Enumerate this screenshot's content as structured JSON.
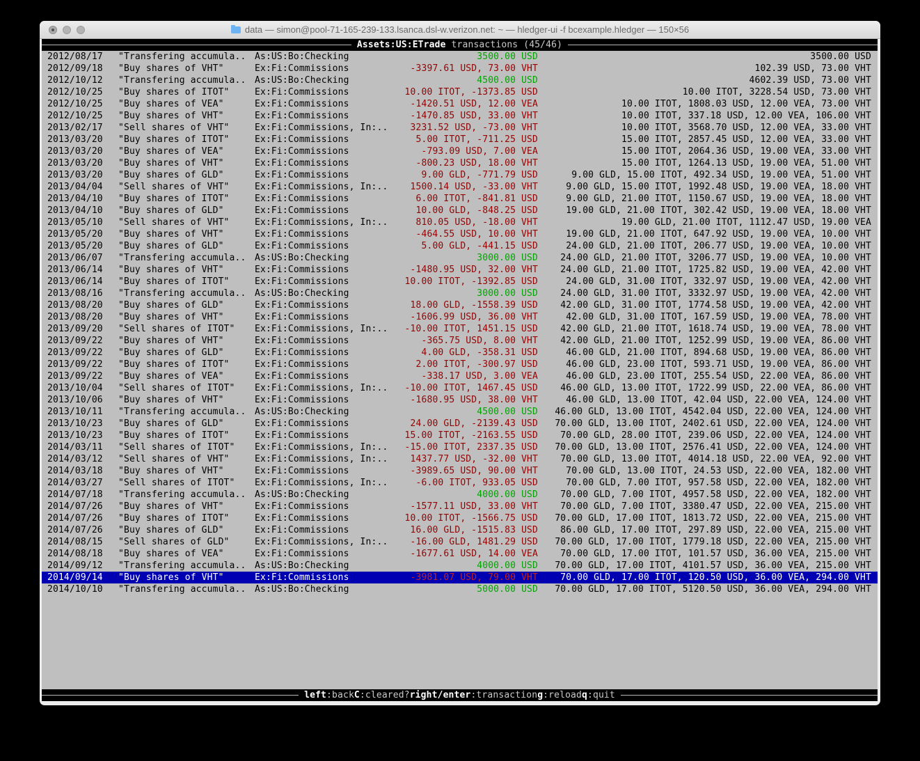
{
  "window": {
    "title": "data — simon@pool-71-165-239-133.lsanca.dsl-w.verizon.net: ~ — hledger-ui -f bcexample.hledger — 150×56"
  },
  "topbar": {
    "account": "Assets:US:ETrade",
    "mode": "transactions (45/46)"
  },
  "statusbar": {
    "keys": [
      {
        "key": "left",
        "desc": ":back"
      },
      {
        "key": "C",
        "desc": ":cleared?"
      },
      {
        "key": "right/enter",
        "desc": ":transaction"
      },
      {
        "key": "g",
        "desc": ":reload"
      },
      {
        "key": "q",
        "desc": ":quit"
      }
    ]
  },
  "colors": {
    "terminal_bg": "#bfbfbf",
    "negative_amount": "#990000",
    "positive_amount": "#00a600",
    "selection_bg": "#0000b2",
    "bar_bg": "#000000"
  },
  "transactions": [
    {
      "date": "2012/08/17",
      "description": "\"Transfering accumula..",
      "accounts": "As:US:Bo:Checking",
      "change": "3500.00 USD",
      "change_positive": true,
      "balance": "3500.00 USD",
      "selected": false
    },
    {
      "date": "2012/09/18",
      "description": "\"Buy shares of VHT\"",
      "accounts": "Ex:Fi:Commissions",
      "change": "-3397.61 USD, 73.00 VHT",
      "change_positive": false,
      "balance": "102.39 USD, 73.00 VHT",
      "selected": false
    },
    {
      "date": "2012/10/12",
      "description": "\"Transfering accumula..",
      "accounts": "As:US:Bo:Checking",
      "change": "4500.00 USD",
      "change_positive": true,
      "balance": "4602.39 USD, 73.00 VHT",
      "selected": false
    },
    {
      "date": "2012/10/25",
      "description": "\"Buy shares of ITOT\"",
      "accounts": "Ex:Fi:Commissions",
      "change": "10.00 ITOT, -1373.85 USD",
      "change_positive": false,
      "balance": "10.00 ITOT, 3228.54 USD, 73.00 VHT",
      "selected": false
    },
    {
      "date": "2012/10/25",
      "description": "\"Buy shares of VEA\"",
      "accounts": "Ex:Fi:Commissions",
      "change": "-1420.51 USD, 12.00 VEA",
      "change_positive": false,
      "balance": "10.00 ITOT, 1808.03 USD, 12.00 VEA, 73.00 VHT",
      "selected": false
    },
    {
      "date": "2012/10/25",
      "description": "\"Buy shares of VHT\"",
      "accounts": "Ex:Fi:Commissions",
      "change": "-1470.85 USD, 33.00 VHT",
      "change_positive": false,
      "balance": "10.00 ITOT, 337.18 USD, 12.00 VEA, 106.00 VHT",
      "selected": false
    },
    {
      "date": "2013/02/17",
      "description": "\"Sell shares of VHT\"",
      "accounts": "Ex:Fi:Commissions, In:..",
      "change": "3231.52 USD, -73.00 VHT",
      "change_positive": false,
      "balance": "10.00 ITOT, 3568.70 USD, 12.00 VEA, 33.00 VHT",
      "selected": false
    },
    {
      "date": "2013/03/20",
      "description": "\"Buy shares of ITOT\"",
      "accounts": "Ex:Fi:Commissions",
      "change": "5.00 ITOT, -711.25 USD",
      "change_positive": false,
      "balance": "15.00 ITOT, 2857.45 USD, 12.00 VEA, 33.00 VHT",
      "selected": false
    },
    {
      "date": "2013/03/20",
      "description": "\"Buy shares of VEA\"",
      "accounts": "Ex:Fi:Commissions",
      "change": "-793.09 USD, 7.00 VEA",
      "change_positive": false,
      "balance": "15.00 ITOT, 2064.36 USD, 19.00 VEA, 33.00 VHT",
      "selected": false
    },
    {
      "date": "2013/03/20",
      "description": "\"Buy shares of VHT\"",
      "accounts": "Ex:Fi:Commissions",
      "change": "-800.23 USD, 18.00 VHT",
      "change_positive": false,
      "balance": "15.00 ITOT, 1264.13 USD, 19.00 VEA, 51.00 VHT",
      "selected": false
    },
    {
      "date": "2013/03/20",
      "description": "\"Buy shares of GLD\"",
      "accounts": "Ex:Fi:Commissions",
      "change": "9.00 GLD, -771.79 USD",
      "change_positive": false,
      "balance": "9.00 GLD, 15.00 ITOT, 492.34 USD, 19.00 VEA, 51.00 VHT",
      "selected": false
    },
    {
      "date": "2013/04/04",
      "description": "\"Sell shares of VHT\"",
      "accounts": "Ex:Fi:Commissions, In:..",
      "change": "1500.14 USD, -33.00 VHT",
      "change_positive": false,
      "balance": "9.00 GLD, 15.00 ITOT, 1992.48 USD, 19.00 VEA, 18.00 VHT",
      "selected": false
    },
    {
      "date": "2013/04/10",
      "description": "\"Buy shares of ITOT\"",
      "accounts": "Ex:Fi:Commissions",
      "change": "6.00 ITOT, -841.81 USD",
      "change_positive": false,
      "balance": "9.00 GLD, 21.00 ITOT, 1150.67 USD, 19.00 VEA, 18.00 VHT",
      "selected": false
    },
    {
      "date": "2013/04/10",
      "description": "\"Buy shares of GLD\"",
      "accounts": "Ex:Fi:Commissions",
      "change": "10.00 GLD, -848.25 USD",
      "change_positive": false,
      "balance": "19.00 GLD, 21.00 ITOT, 302.42 USD, 19.00 VEA, 18.00 VHT",
      "selected": false
    },
    {
      "date": "2013/05/10",
      "description": "\"Sell shares of VHT\"",
      "accounts": "Ex:Fi:Commissions, In:..",
      "change": "810.05 USD, -18.00 VHT",
      "change_positive": false,
      "balance": "19.00 GLD, 21.00 ITOT, 1112.47 USD, 19.00 VEA",
      "selected": false
    },
    {
      "date": "2013/05/20",
      "description": "\"Buy shares of VHT\"",
      "accounts": "Ex:Fi:Commissions",
      "change": "-464.55 USD, 10.00 VHT",
      "change_positive": false,
      "balance": "19.00 GLD, 21.00 ITOT, 647.92 USD, 19.00 VEA, 10.00 VHT",
      "selected": false
    },
    {
      "date": "2013/05/20",
      "description": "\"Buy shares of GLD\"",
      "accounts": "Ex:Fi:Commissions",
      "change": "5.00 GLD, -441.15 USD",
      "change_positive": false,
      "balance": "24.00 GLD, 21.00 ITOT, 206.77 USD, 19.00 VEA, 10.00 VHT",
      "selected": false
    },
    {
      "date": "2013/06/07",
      "description": "\"Transfering accumula..",
      "accounts": "As:US:Bo:Checking",
      "change": "3000.00 USD",
      "change_positive": true,
      "balance": "24.00 GLD, 21.00 ITOT, 3206.77 USD, 19.00 VEA, 10.00 VHT",
      "selected": false
    },
    {
      "date": "2013/06/14",
      "description": "\"Buy shares of VHT\"",
      "accounts": "Ex:Fi:Commissions",
      "change": "-1480.95 USD, 32.00 VHT",
      "change_positive": false,
      "balance": "24.00 GLD, 21.00 ITOT, 1725.82 USD, 19.00 VEA, 42.00 VHT",
      "selected": false
    },
    {
      "date": "2013/06/14",
      "description": "\"Buy shares of ITOT\"",
      "accounts": "Ex:Fi:Commissions",
      "change": "10.00 ITOT, -1392.85 USD",
      "change_positive": false,
      "balance": "24.00 GLD, 31.00 ITOT, 332.97 USD, 19.00 VEA, 42.00 VHT",
      "selected": false
    },
    {
      "date": "2013/08/16",
      "description": "\"Transfering accumula..",
      "accounts": "As:US:Bo:Checking",
      "change": "3000.00 USD",
      "change_positive": true,
      "balance": "24.00 GLD, 31.00 ITOT, 3332.97 USD, 19.00 VEA, 42.00 VHT",
      "selected": false
    },
    {
      "date": "2013/08/20",
      "description": "\"Buy shares of GLD\"",
      "accounts": "Ex:Fi:Commissions",
      "change": "18.00 GLD, -1558.39 USD",
      "change_positive": false,
      "balance": "42.00 GLD, 31.00 ITOT, 1774.58 USD, 19.00 VEA, 42.00 VHT",
      "selected": false
    },
    {
      "date": "2013/08/20",
      "description": "\"Buy shares of VHT\"",
      "accounts": "Ex:Fi:Commissions",
      "change": "-1606.99 USD, 36.00 VHT",
      "change_positive": false,
      "balance": "42.00 GLD, 31.00 ITOT, 167.59 USD, 19.00 VEA, 78.00 VHT",
      "selected": false
    },
    {
      "date": "2013/09/20",
      "description": "\"Sell shares of ITOT\"",
      "accounts": "Ex:Fi:Commissions, In:..",
      "change": "-10.00 ITOT, 1451.15 USD",
      "change_positive": false,
      "balance": "42.00 GLD, 21.00 ITOT, 1618.74 USD, 19.00 VEA, 78.00 VHT",
      "selected": false
    },
    {
      "date": "2013/09/22",
      "description": "\"Buy shares of VHT\"",
      "accounts": "Ex:Fi:Commissions",
      "change": "-365.75 USD, 8.00 VHT",
      "change_positive": false,
      "balance": "42.00 GLD, 21.00 ITOT, 1252.99 USD, 19.00 VEA, 86.00 VHT",
      "selected": false
    },
    {
      "date": "2013/09/22",
      "description": "\"Buy shares of GLD\"",
      "accounts": "Ex:Fi:Commissions",
      "change": "4.00 GLD, -358.31 USD",
      "change_positive": false,
      "balance": "46.00 GLD, 21.00 ITOT, 894.68 USD, 19.00 VEA, 86.00 VHT",
      "selected": false
    },
    {
      "date": "2013/09/22",
      "description": "\"Buy shares of ITOT\"",
      "accounts": "Ex:Fi:Commissions",
      "change": "2.00 ITOT, -300.97 USD",
      "change_positive": false,
      "balance": "46.00 GLD, 23.00 ITOT, 593.71 USD, 19.00 VEA, 86.00 VHT",
      "selected": false
    },
    {
      "date": "2013/09/22",
      "description": "\"Buy shares of VEA\"",
      "accounts": "Ex:Fi:Commissions",
      "change": "-338.17 USD, 3.00 VEA",
      "change_positive": false,
      "balance": "46.00 GLD, 23.00 ITOT, 255.54 USD, 22.00 VEA, 86.00 VHT",
      "selected": false
    },
    {
      "date": "2013/10/04",
      "description": "\"Sell shares of ITOT\"",
      "accounts": "Ex:Fi:Commissions, In:..",
      "change": "-10.00 ITOT, 1467.45 USD",
      "change_positive": false,
      "balance": "46.00 GLD, 13.00 ITOT, 1722.99 USD, 22.00 VEA, 86.00 VHT",
      "selected": false
    },
    {
      "date": "2013/10/06",
      "description": "\"Buy shares of VHT\"",
      "accounts": "Ex:Fi:Commissions",
      "change": "-1680.95 USD, 38.00 VHT",
      "change_positive": false,
      "balance": "46.00 GLD, 13.00 ITOT, 42.04 USD, 22.00 VEA, 124.00 VHT",
      "selected": false
    },
    {
      "date": "2013/10/11",
      "description": "\"Transfering accumula..",
      "accounts": "As:US:Bo:Checking",
      "change": "4500.00 USD",
      "change_positive": true,
      "balance": "46.00 GLD, 13.00 ITOT, 4542.04 USD, 22.00 VEA, 124.00 VHT",
      "selected": false
    },
    {
      "date": "2013/10/23",
      "description": "\"Buy shares of GLD\"",
      "accounts": "Ex:Fi:Commissions",
      "change": "24.00 GLD, -2139.43 USD",
      "change_positive": false,
      "balance": "70.00 GLD, 13.00 ITOT, 2402.61 USD, 22.00 VEA, 124.00 VHT",
      "selected": false
    },
    {
      "date": "2013/10/23",
      "description": "\"Buy shares of ITOT\"",
      "accounts": "Ex:Fi:Commissions",
      "change": "15.00 ITOT, -2163.55 USD",
      "change_positive": false,
      "balance": "70.00 GLD, 28.00 ITOT, 239.06 USD, 22.00 VEA, 124.00 VHT",
      "selected": false
    },
    {
      "date": "2014/03/11",
      "description": "\"Sell shares of ITOT\"",
      "accounts": "Ex:Fi:Commissions, In:..",
      "change": "-15.00 ITOT, 2337.35 USD",
      "change_positive": false,
      "balance": "70.00 GLD, 13.00 ITOT, 2576.41 USD, 22.00 VEA, 124.00 VHT",
      "selected": false
    },
    {
      "date": "2014/03/12",
      "description": "\"Sell shares of VHT\"",
      "accounts": "Ex:Fi:Commissions, In:..",
      "change": "1437.77 USD, -32.00 VHT",
      "change_positive": false,
      "balance": "70.00 GLD, 13.00 ITOT, 4014.18 USD, 22.00 VEA, 92.00 VHT",
      "selected": false
    },
    {
      "date": "2014/03/18",
      "description": "\"Buy shares of VHT\"",
      "accounts": "Ex:Fi:Commissions",
      "change": "-3989.65 USD, 90.00 VHT",
      "change_positive": false,
      "balance": "70.00 GLD, 13.00 ITOT, 24.53 USD, 22.00 VEA, 182.00 VHT",
      "selected": false
    },
    {
      "date": "2014/03/27",
      "description": "\"Sell shares of ITOT\"",
      "accounts": "Ex:Fi:Commissions, In:..",
      "change": "-6.00 ITOT, 933.05 USD",
      "change_positive": false,
      "balance": "70.00 GLD, 7.00 ITOT, 957.58 USD, 22.00 VEA, 182.00 VHT",
      "selected": false
    },
    {
      "date": "2014/07/18",
      "description": "\"Transfering accumula..",
      "accounts": "As:US:Bo:Checking",
      "change": "4000.00 USD",
      "change_positive": true,
      "balance": "70.00 GLD, 7.00 ITOT, 4957.58 USD, 22.00 VEA, 182.00 VHT",
      "selected": false
    },
    {
      "date": "2014/07/26",
      "description": "\"Buy shares of VHT\"",
      "accounts": "Ex:Fi:Commissions",
      "change": "-1577.11 USD, 33.00 VHT",
      "change_positive": false,
      "balance": "70.00 GLD, 7.00 ITOT, 3380.47 USD, 22.00 VEA, 215.00 VHT",
      "selected": false
    },
    {
      "date": "2014/07/26",
      "description": "\"Buy shares of ITOT\"",
      "accounts": "Ex:Fi:Commissions",
      "change": "10.00 ITOT, -1566.75 USD",
      "change_positive": false,
      "balance": "70.00 GLD, 17.00 ITOT, 1813.72 USD, 22.00 VEA, 215.00 VHT",
      "selected": false
    },
    {
      "date": "2014/07/26",
      "description": "\"Buy shares of GLD\"",
      "accounts": "Ex:Fi:Commissions",
      "change": "16.00 GLD, -1515.83 USD",
      "change_positive": false,
      "balance": "86.00 GLD, 17.00 ITOT, 297.89 USD, 22.00 VEA, 215.00 VHT",
      "selected": false
    },
    {
      "date": "2014/08/15",
      "description": "\"Sell shares of GLD\"",
      "accounts": "Ex:Fi:Commissions, In:..",
      "change": "-16.00 GLD, 1481.29 USD",
      "change_positive": false,
      "balance": "70.00 GLD, 17.00 ITOT, 1779.18 USD, 22.00 VEA, 215.00 VHT",
      "selected": false
    },
    {
      "date": "2014/08/18",
      "description": "\"Buy shares of VEA\"",
      "accounts": "Ex:Fi:Commissions",
      "change": "-1677.61 USD, 14.00 VEA",
      "change_positive": false,
      "balance": "70.00 GLD, 17.00 ITOT, 101.57 USD, 36.00 VEA, 215.00 VHT",
      "selected": false
    },
    {
      "date": "2014/09/12",
      "description": "\"Transfering accumula..",
      "accounts": "As:US:Bo:Checking",
      "change": "4000.00 USD",
      "change_positive": true,
      "balance": "70.00 GLD, 17.00 ITOT, 4101.57 USD, 36.00 VEA, 215.00 VHT",
      "selected": false
    },
    {
      "date": "2014/09/14",
      "description": "\"Buy shares of VHT\"",
      "accounts": "Ex:Fi:Commissions",
      "change": "-3981.07 USD, 79.00 VHT",
      "change_positive": false,
      "balance": "70.00 GLD, 17.00 ITOT, 120.50 USD, 36.00 VEA, 294.00 VHT",
      "selected": true
    },
    {
      "date": "2014/10/10",
      "description": "\"Transfering accumula..",
      "accounts": "As:US:Bo:Checking",
      "change": "5000.00 USD",
      "change_positive": true,
      "balance": "70.00 GLD, 17.00 ITOT, 5120.50 USD, 36.00 VEA, 294.00 VHT",
      "selected": false
    }
  ]
}
